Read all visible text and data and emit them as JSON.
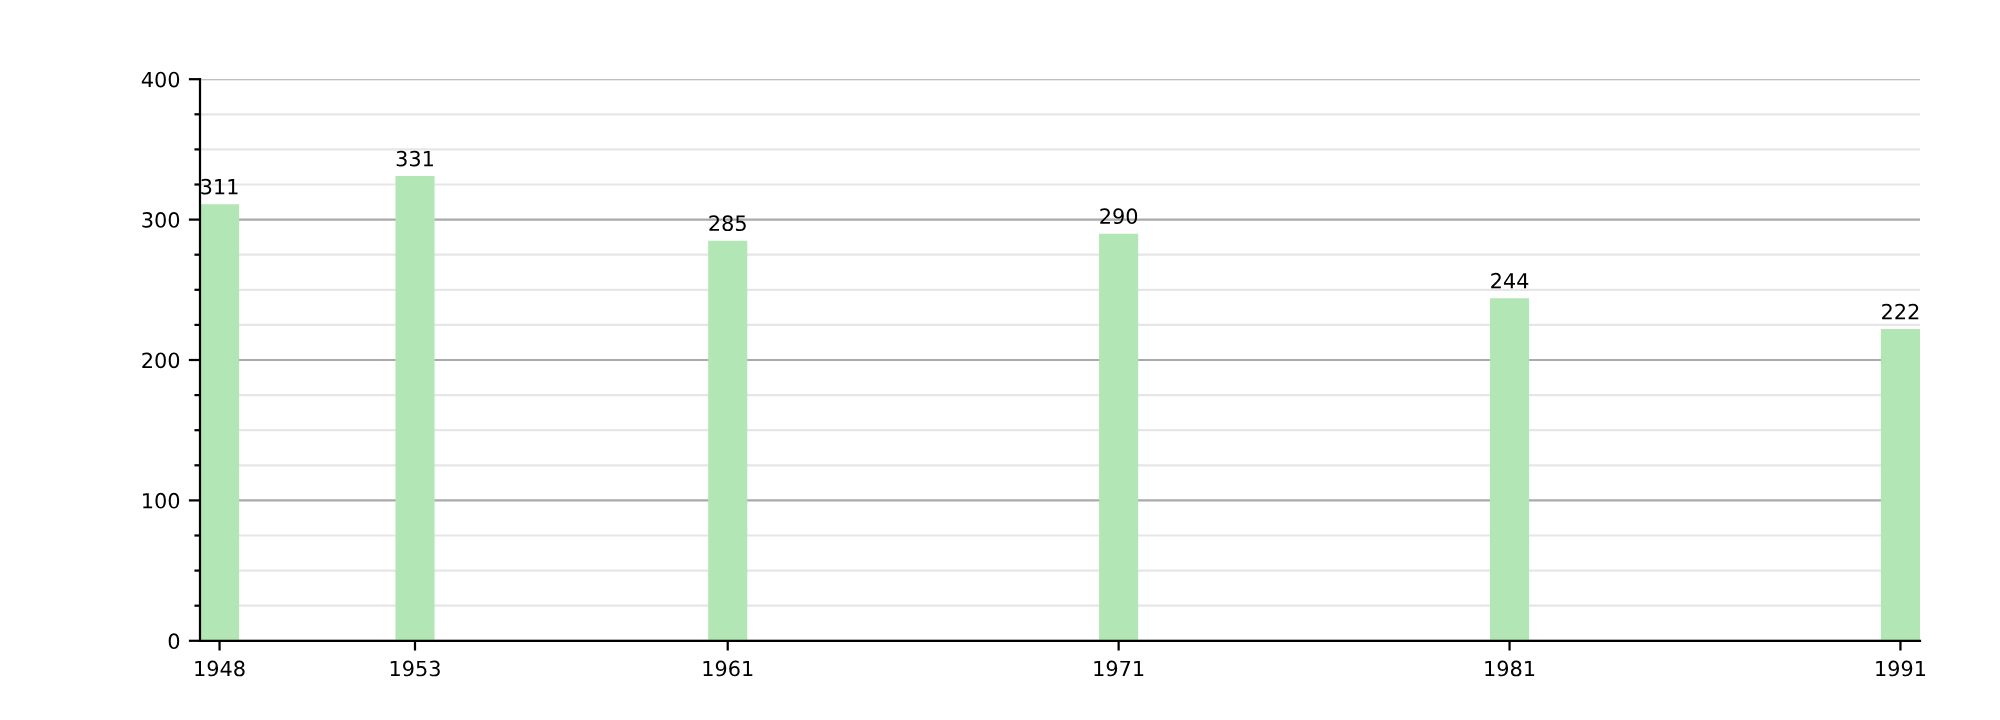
{
  "chart_data": {
    "type": "bar",
    "x": [
      1948,
      1953,
      1961,
      1971,
      1981,
      1991
    ],
    "values": [
      311,
      331,
      285,
      290,
      244,
      222
    ],
    "color": "#b3e6b5",
    "data_labels": true,
    "xlim": [
      1947.5,
      1991.5
    ],
    "xticks": [
      1948,
      1953,
      1961,
      1971,
      1981,
      1991
    ],
    "ylim": [
      0,
      400
    ],
    "yticks": [
      0,
      {
        "value": 25,
        "label": null
      },
      {
        "value": 50,
        "label": null
      },
      {
        "value": 75,
        "label": null
      },
      100,
      {
        "value": 125,
        "label": null
      },
      {
        "value": 150,
        "label": null
      },
      {
        "value": 175,
        "label": null
      },
      200,
      {
        "value": 225,
        "label": null
      },
      {
        "value": 250,
        "label": null
      },
      {
        "value": 275,
        "label": null
      },
      300,
      {
        "value": 325,
        "label": null
      },
      {
        "value": 350,
        "label": null
      },
      {
        "value": 375,
        "label": null
      },
      400
    ],
    "grid": "y"
  }
}
